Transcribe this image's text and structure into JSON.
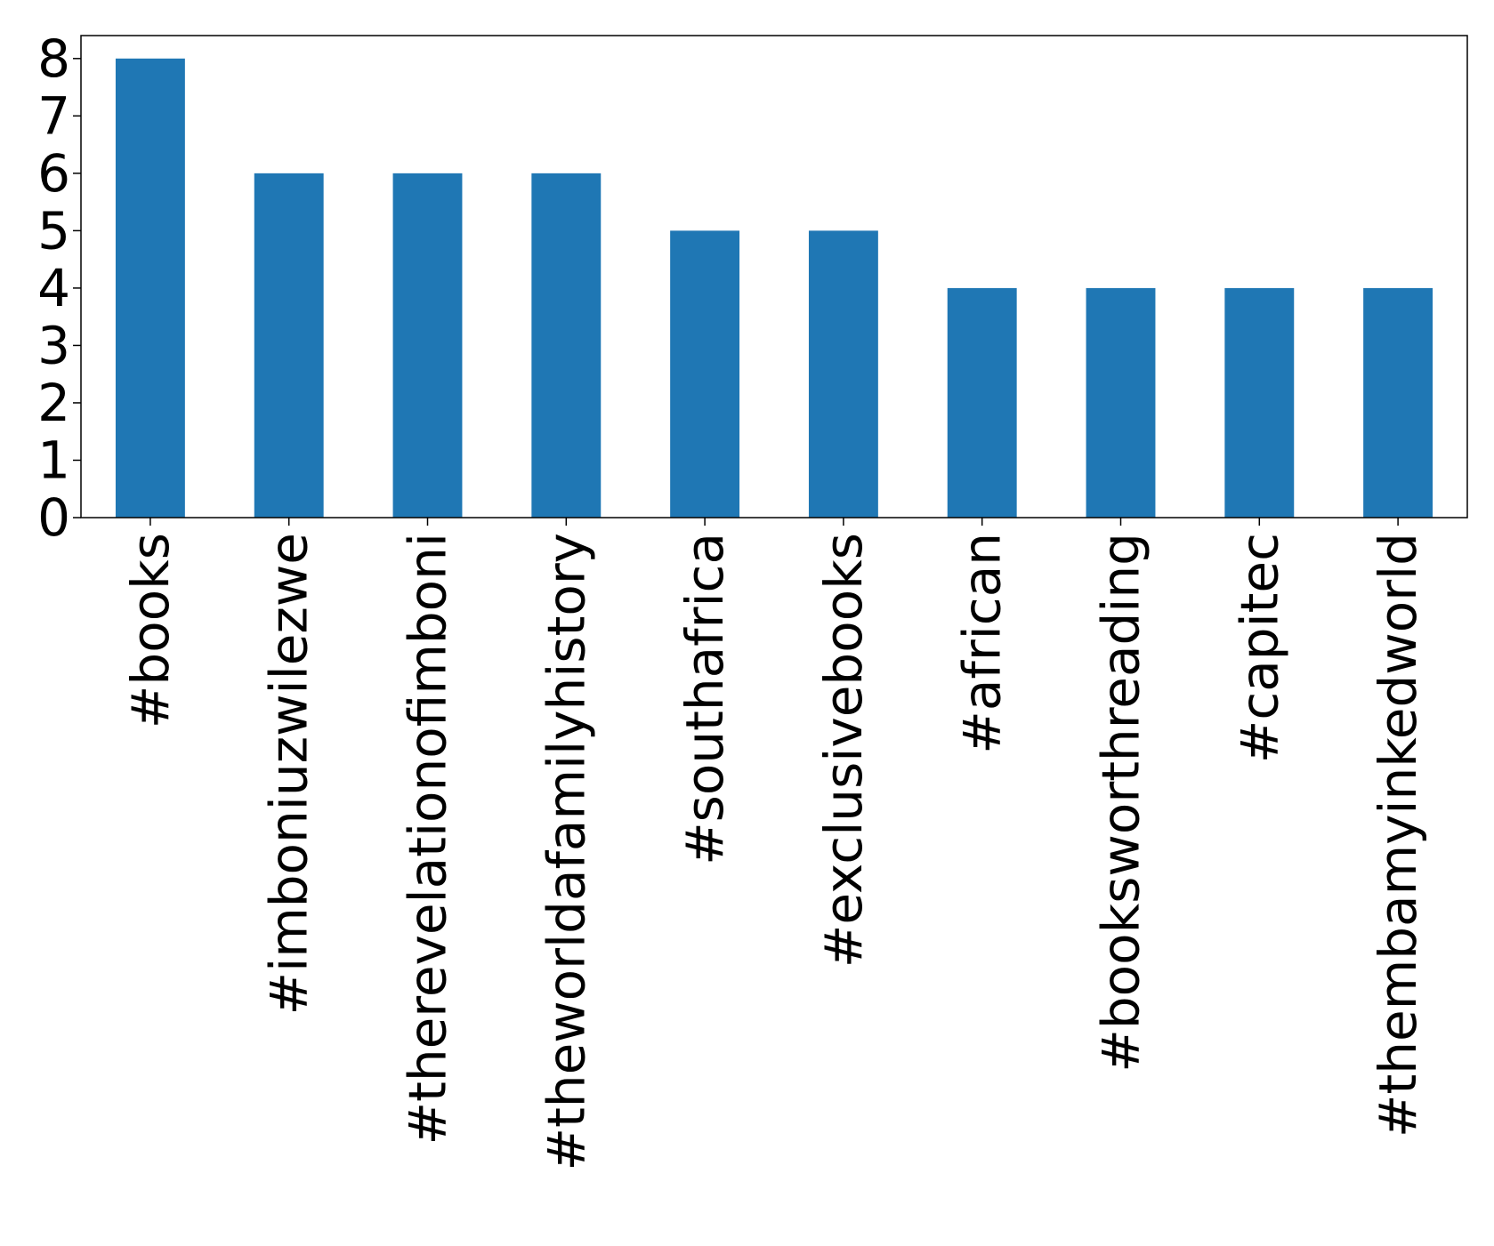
{
  "chart_data": {
    "type": "bar",
    "title": "",
    "xlabel": "",
    "ylabel": "",
    "categories": [
      "#books",
      "#imboniuzwilezwe",
      "#therevelationofimboni",
      "#theworldafamilyhistory",
      "#southafrica",
      "#exclusivebooks",
      "#african",
      "#booksworthreading",
      "#capitec",
      "#thembamyinkedworld"
    ],
    "values": [
      8,
      6,
      6,
      6,
      5,
      5,
      4,
      4,
      4,
      4
    ],
    "ylim": [
      0,
      8.4
    ],
    "yticks": [
      "0",
      "1",
      "2",
      "3",
      "4",
      "5",
      "6",
      "7",
      "8"
    ],
    "grid": false,
    "legend": "none",
    "bar_color": "#1f77b4"
  }
}
